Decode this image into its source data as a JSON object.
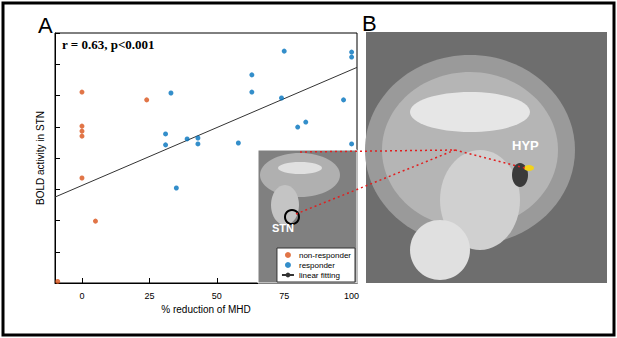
{
  "panel_labels": [
    "A",
    "B"
  ],
  "image_labels": {
    "inset": "STN",
    "main": "HYP"
  },
  "chart_data": {
    "type": "scatter",
    "annotations": [
      "r = 0.63, p<0.001"
    ],
    "xlabel": "% reduction of MHD",
    "ylabel": "BOLD activity in STN",
    "xlim": [
      -10,
      102
    ],
    "xticks": [
      0,
      25,
      50,
      75,
      100
    ],
    "ylim": [
      0,
      8
    ],
    "yticks": [
      0,
      1,
      2,
      3,
      4,
      5,
      6,
      7,
      8
    ],
    "tick_labels": "x",
    "grid": false,
    "legend": "lower right",
    "series": [
      {
        "name": "non-responder",
        "type": "scatter",
        "color": "#d95319",
        "marker": "circle",
        "x": [
          0,
          0,
          0,
          0,
          0,
          24,
          5,
          -9
        ],
        "values": [
          6.11,
          5.02,
          4.86,
          4.7,
          3.36,
          5.86,
          1.98,
          0.05
        ]
      },
      {
        "name": "responder",
        "type": "scatter",
        "color": "#0072bd",
        "marker": "circle",
        "x": [
          33,
          31,
          31,
          35,
          39,
          43,
          43,
          58,
          63,
          63,
          74,
          75,
          80,
          83,
          97,
          100,
          100,
          100
        ],
        "values": [
          6.08,
          4.77,
          4.42,
          3.04,
          4.61,
          4.64,
          4.45,
          4.48,
          6.66,
          6.11,
          5.92,
          7.42,
          4.99,
          5.15,
          5.86,
          7.39,
          7.23,
          4.45
        ]
      },
      {
        "name": "linear fitting",
        "type": "line",
        "color": "#333333",
        "line_style": "solid",
        "x": [
          -10,
          102
        ],
        "values": [
          2.75,
          6.9
        ]
      }
    ]
  }
}
